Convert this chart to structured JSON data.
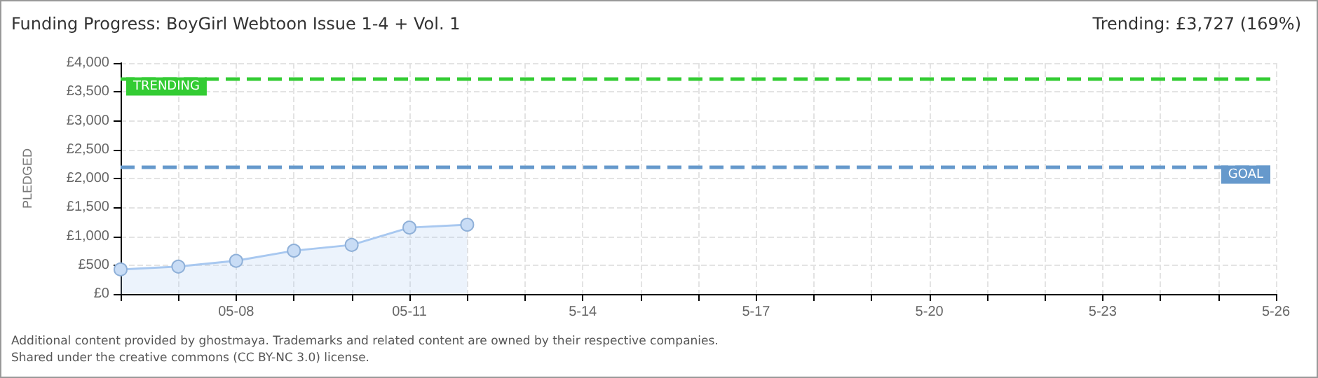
{
  "chart_data": {
    "type": "area",
    "title": "Funding Progress: BoyGirl Webtoon Issue 1-4 + Vol. 1",
    "subtitle": "Trending: £3,727 (169%)",
    "ylabel": "PLEDGED",
    "x": [
      "--05-06",
      "--05-07",
      "--05-08",
      "--05-09",
      "--05-10",
      "--05-11",
      "--05-12"
    ],
    "series": [
      {
        "color": "#a8c8f0",
        "values": [
          425,
          475,
          575,
          750,
          850,
          1150,
          1200
        ]
      }
    ],
    "xlim": [
      "--05-06",
      "--05-26"
    ],
    "xticks": [
      {
        "value": "--05-06",
        "label": null
      },
      {
        "value": "--05-07",
        "label": null
      },
      {
        "value": "--05-08",
        "label": "05-08"
      },
      {
        "value": "--05-09",
        "label": null
      },
      {
        "value": "--05-10",
        "label": null
      },
      {
        "value": "--05-11",
        "label": "05-11"
      },
      {
        "value": "--05-12",
        "label": null
      },
      {
        "value": "--05-13",
        "label": null
      },
      {
        "value": "--05-14",
        "label": "5-14"
      },
      {
        "value": "--05-15",
        "label": null
      },
      {
        "value": "--05-16",
        "label": null
      },
      {
        "value": "--05-17",
        "label": "5-17"
      },
      {
        "value": "--05-18",
        "label": null
      },
      {
        "value": "--05-19",
        "label": null
      },
      {
        "value": "--05-20",
        "label": "5-20"
      },
      {
        "value": "--05-21",
        "label": null
      },
      {
        "value": "--05-22",
        "label": null
      },
      {
        "value": "--05-23",
        "label": "5-23"
      },
      {
        "value": "--05-24",
        "label": null
      },
      {
        "value": "--05-25",
        "label": null
      },
      {
        "value": "--05-26",
        "label": "5-26"
      }
    ],
    "ylim": [
      0,
      4000
    ],
    "yticks": [
      {
        "value": 0,
        "label": "£0"
      },
      {
        "value": 500,
        "label": "£500"
      },
      {
        "value": 1000,
        "label": "£1,000"
      },
      {
        "value": 1500,
        "label": "£1,500"
      },
      {
        "value": 2000,
        "label": "£2,000"
      },
      {
        "value": 2500,
        "label": "£2,500"
      },
      {
        "value": 3000,
        "label": "£3,000"
      },
      {
        "value": 3500,
        "label": "£3,500"
      },
      {
        "value": 4000,
        "label": "£4,000"
      }
    ],
    "ref_lines": [
      {
        "axis": "y",
        "value": 3727,
        "label": "TRENDING",
        "color": "#33cc33",
        "line_style": "dashed"
      },
      {
        "axis": "y",
        "value": 2200,
        "label": "GOAL",
        "color": "#6699cc",
        "line_style": "dashed"
      }
    ],
    "annotations": [
      "Additional content provided by ghostmaya. Trademarks and related content are owned by their respective companies.",
      "Shared under the creative commons (CC BY-NC 3.0) license."
    ],
    "grid": true,
    "marker": "circle",
    "line_style": "solid"
  }
}
